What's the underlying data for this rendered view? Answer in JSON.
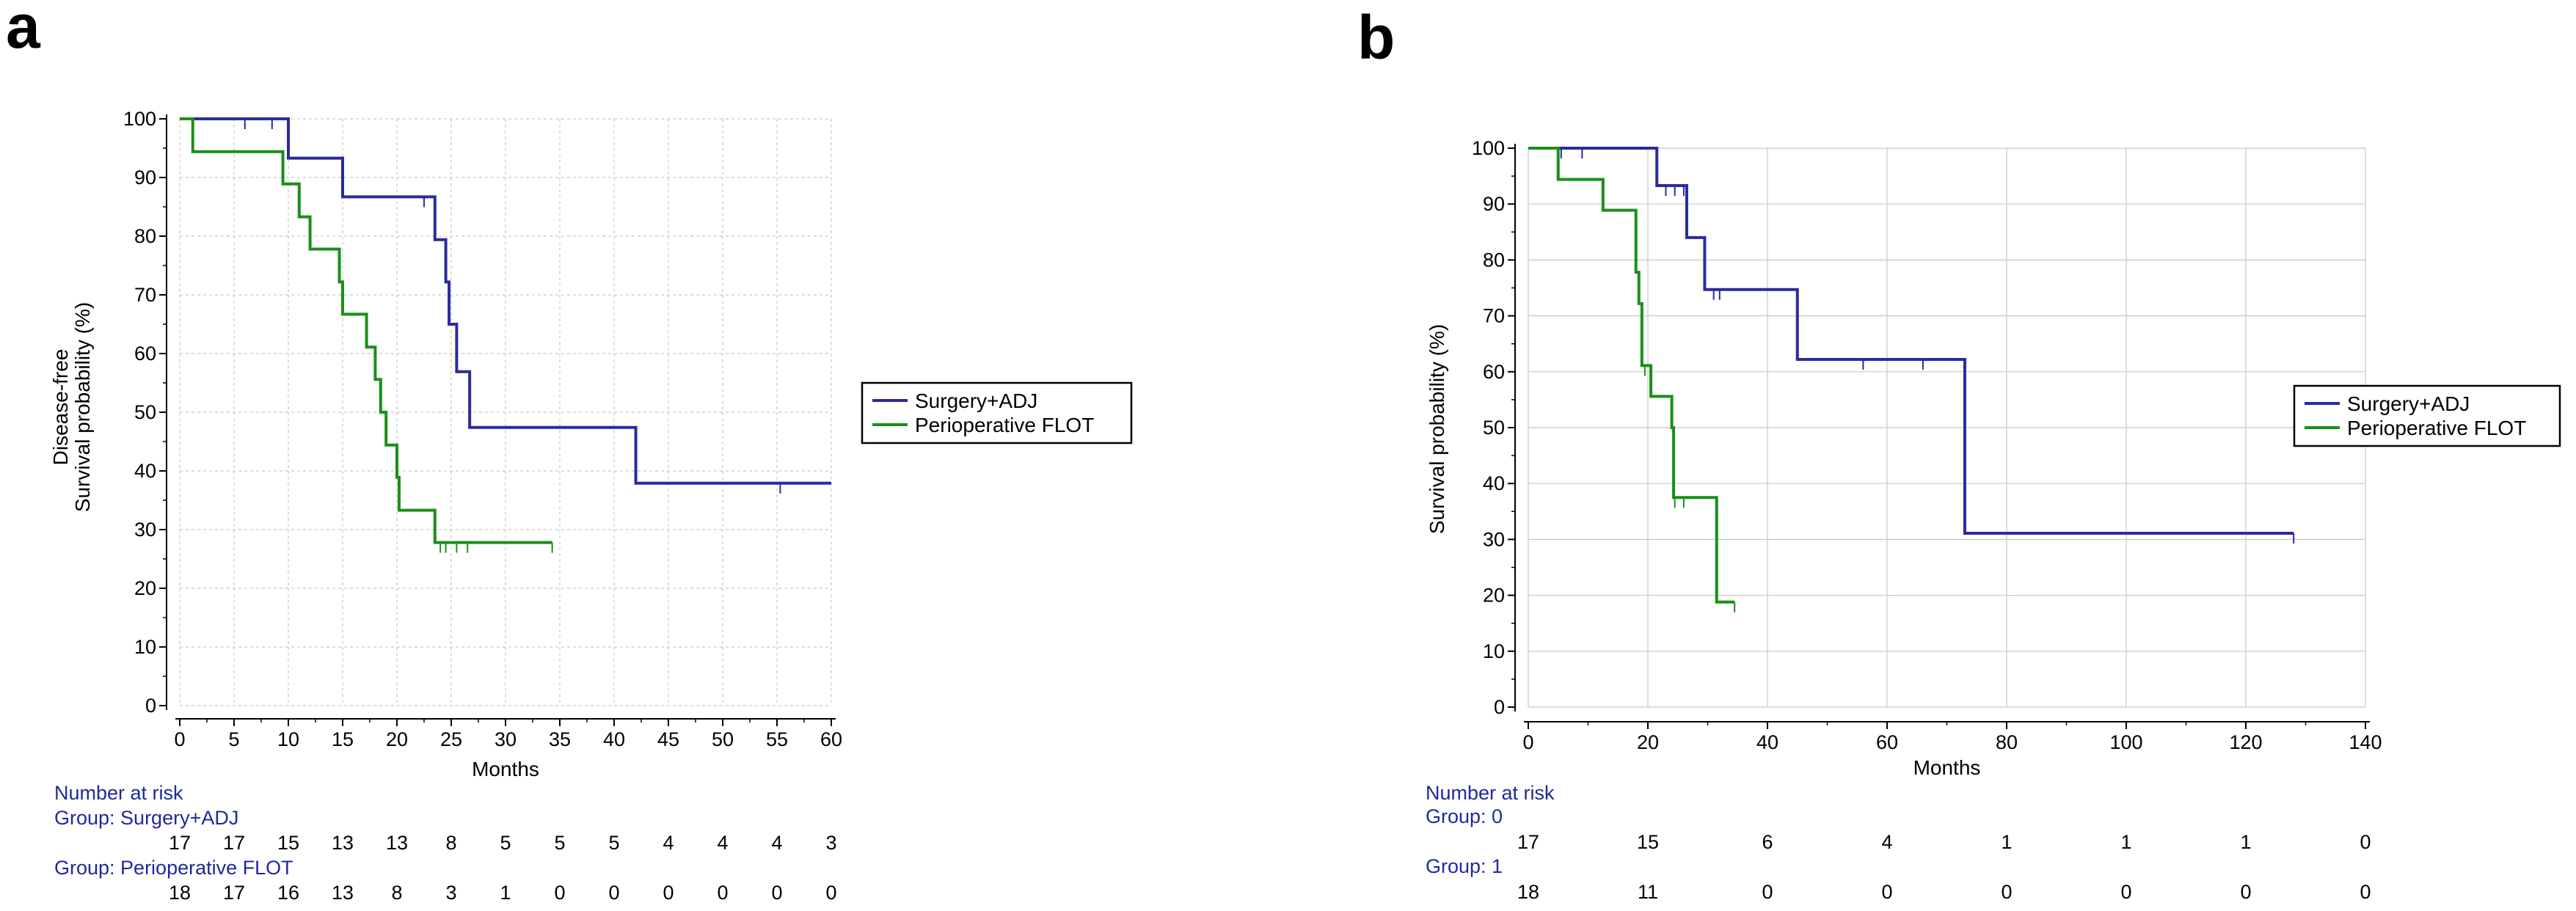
{
  "chart_data": [
    {
      "panel": "a",
      "type": "line",
      "ylabel_line1": "Disease-free",
      "ylabel_line2": "Survival probability (%)",
      "xlabel": "Months",
      "xlim": [
        0,
        60
      ],
      "ylim": [
        0,
        100
      ],
      "xticks": [
        0,
        5,
        10,
        15,
        20,
        25,
        30,
        35,
        40,
        45,
        50,
        55,
        60
      ],
      "yticks": [
        0,
        10,
        20,
        30,
        40,
        50,
        60,
        70,
        80,
        90,
        100
      ],
      "series": [
        {
          "name": "Surgery+ADJ",
          "color": "#2b2b9e",
          "steps": [
            [
              0,
              100
            ],
            [
              10,
              93.3
            ],
            [
              15,
              86.7
            ],
            [
              23.5,
              79.4
            ],
            [
              24.5,
              72.2
            ],
            [
              24.8,
              65
            ],
            [
              25.5,
              56.9
            ],
            [
              26.7,
              47.4
            ],
            [
              42,
              37.9
            ],
            [
              60,
              37.9
            ]
          ],
          "censored": [
            6,
            8.5,
            22.5,
            55.3
          ]
        },
        {
          "name": "Perioperative FLOT",
          "color": "#1a8f1a",
          "steps": [
            [
              0,
              100
            ],
            [
              1.2,
              94.4
            ],
            [
              9.5,
              88.9
            ],
            [
              11,
              83.3
            ],
            [
              12,
              77.8
            ],
            [
              14.7,
              72.2
            ],
            [
              15,
              66.7
            ],
            [
              17.2,
              61.1
            ],
            [
              18,
              55.6
            ],
            [
              18.5,
              50
            ],
            [
              19,
              44.4
            ],
            [
              20,
              38.9
            ],
            [
              20.2,
              33.3
            ],
            [
              23.5,
              27.8
            ],
            [
              34.3,
              27.8
            ]
          ],
          "censored": [
            24,
            24.5,
            25.5,
            26.5,
            34.3
          ]
        }
      ],
      "legend": [
        "Surgery+ADJ",
        "Perioperative FLOT"
      ],
      "risk_table": {
        "title": "Number at risk",
        "groups": [
          {
            "label": "Group: Surgery+ADJ",
            "counts": [
              17,
              17,
              15,
              13,
              13,
              8,
              5,
              5,
              5,
              4,
              4,
              4,
              3
            ]
          },
          {
            "label": "Group: Perioperative FLOT",
            "counts": [
              18,
              17,
              16,
              13,
              8,
              3,
              1,
              0,
              0,
              0,
              0,
              0,
              0
            ]
          }
        ]
      }
    },
    {
      "panel": "b",
      "type": "line",
      "ylabel_line1": "",
      "ylabel_line2": "Survival probability (%)",
      "xlabel": "Months",
      "xlim": [
        0,
        140
      ],
      "ylim": [
        0,
        100
      ],
      "xticks": [
        0,
        20,
        40,
        60,
        80,
        100,
        120,
        140
      ],
      "yticks": [
        0,
        10,
        20,
        30,
        40,
        50,
        60,
        70,
        80,
        90,
        100
      ],
      "series": [
        {
          "name": "Surgery+ADJ",
          "color": "#2b2b9e",
          "steps": [
            [
              0,
              100
            ],
            [
              21.5,
              93.3
            ],
            [
              26.5,
              84
            ],
            [
              29.5,
              74.7
            ],
            [
              45,
              62.2
            ],
            [
              73,
              31.1
            ],
            [
              128,
              31.1
            ]
          ],
          "censored": [
            5.5,
            9,
            23,
            24.5,
            26,
            31,
            32,
            56,
            66,
            128
          ]
        },
        {
          "name": "Perioperative FLOT",
          "color": "#1a8f1a",
          "steps": [
            [
              0,
              100
            ],
            [
              5,
              94.4
            ],
            [
              12.5,
              88.9
            ],
            [
              18,
              77.8
            ],
            [
              18.5,
              72.2
            ],
            [
              19,
              61.1
            ],
            [
              20.5,
              55.6
            ],
            [
              24,
              50
            ],
            [
              24.3,
              37.5
            ],
            [
              31.5,
              18.8
            ],
            [
              34.5,
              18.8
            ]
          ],
          "censored": [
            19.5,
            24.5,
            26,
            34.5
          ]
        }
      ],
      "legend": [
        "Surgery+ADJ",
        "Perioperative FLOT"
      ],
      "risk_table": {
        "title": "Number at risk",
        "groups": [
          {
            "label": "Group: 0",
            "counts": [
              17,
              15,
              6,
              4,
              1,
              1,
              1,
              0
            ]
          },
          {
            "label": "Group: 1",
            "counts": [
              18,
              11,
              0,
              0,
              0,
              0,
              0,
              0
            ]
          }
        ]
      }
    }
  ],
  "panel_labels": [
    "a",
    "b"
  ]
}
